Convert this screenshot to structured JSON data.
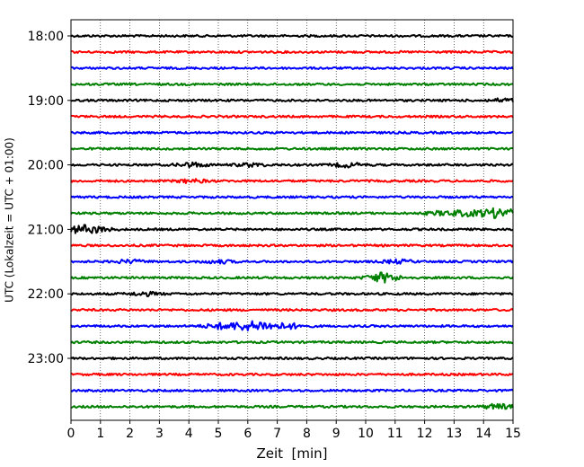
{
  "chart_data": {
    "type": "line",
    "title": "",
    "xlabel": "Zeit  [min]",
    "ylabel": "UTC (Lokalzeit = UTC + 01:00)",
    "xlim": [
      0,
      15
    ],
    "x_ticks": [
      "0",
      "1",
      "2",
      "3",
      "4",
      "5",
      "6",
      "7",
      "8",
      "9",
      "10",
      "11",
      "12",
      "13",
      "14",
      "15"
    ],
    "y_tick_labels": [
      "18:00",
      "19:00",
      "20:00",
      "21:00",
      "22:00",
      "23:00"
    ],
    "grid": "vertical-dotted",
    "legend": "none",
    "trace_colors": [
      "#000000",
      "#ff0000",
      "#0000ff",
      "#008000"
    ],
    "traces": [
      {
        "hour": "18:00",
        "segment": 0,
        "color": "#000000",
        "events": []
      },
      {
        "hour": "18:00",
        "segment": 1,
        "color": "#ff0000",
        "events": []
      },
      {
        "hour": "18:00",
        "segment": 2,
        "color": "#0000ff",
        "events": []
      },
      {
        "hour": "18:00",
        "segment": 3,
        "color": "#008000",
        "events": []
      },
      {
        "hour": "19:00",
        "segment": 0,
        "color": "#000000",
        "events": [
          {
            "t": 14.7,
            "amp": 1.6
          }
        ]
      },
      {
        "hour": "19:00",
        "segment": 1,
        "color": "#ff0000",
        "events": []
      },
      {
        "hour": "19:00",
        "segment": 2,
        "color": "#0000ff",
        "events": []
      },
      {
        "hour": "19:00",
        "segment": 3,
        "color": "#008000",
        "events": []
      },
      {
        "hour": "20:00",
        "segment": 0,
        "color": "#000000",
        "events": [
          {
            "t": 4.1,
            "amp": 2.2
          },
          {
            "t": 6.1,
            "amp": 1.6
          },
          {
            "t": 9.4,
            "amp": 2.0
          }
        ]
      },
      {
        "hour": "20:00",
        "segment": 1,
        "color": "#ff0000",
        "events": [
          {
            "t": 4.1,
            "amp": 1.6
          }
        ]
      },
      {
        "hour": "20:00",
        "segment": 2,
        "color": "#0000ff",
        "events": []
      },
      {
        "hour": "20:00",
        "segment": 3,
        "color": "#008000",
        "events": [
          {
            "t": 12.5,
            "amp": 1.6
          },
          {
            "t": 13.3,
            "amp": 2.5
          },
          {
            "t": 14.2,
            "amp": 3.2
          },
          {
            "t": 14.8,
            "amp": 3.6
          }
        ]
      },
      {
        "hour": "21:00",
        "segment": 0,
        "color": "#000000",
        "events": [
          {
            "t": 0.3,
            "amp": 3.4
          },
          {
            "t": 0.9,
            "amp": 2.2
          }
        ]
      },
      {
        "hour": "21:00",
        "segment": 1,
        "color": "#ff0000",
        "events": []
      },
      {
        "hour": "21:00",
        "segment": 2,
        "color": "#0000ff",
        "events": [
          {
            "t": 2.0,
            "amp": 1.6
          },
          {
            "t": 5.0,
            "amp": 1.5
          },
          {
            "t": 11.1,
            "amp": 1.7
          }
        ]
      },
      {
        "hour": "21:00",
        "segment": 3,
        "color": "#008000",
        "events": [
          {
            "t": 10.6,
            "amp": 5.0
          }
        ]
      },
      {
        "hour": "22:00",
        "segment": 0,
        "color": "#000000",
        "events": [
          {
            "t": 2.5,
            "amp": 1.7
          }
        ]
      },
      {
        "hour": "22:00",
        "segment": 1,
        "color": "#ff0000",
        "events": []
      },
      {
        "hour": "22:00",
        "segment": 2,
        "color": "#0000ff",
        "events": [
          {
            "t": 5.0,
            "amp": 2.4
          },
          {
            "t": 5.8,
            "amp": 3.4
          },
          {
            "t": 6.5,
            "amp": 4.0
          },
          {
            "t": 7.4,
            "amp": 2.4
          }
        ]
      },
      {
        "hour": "22:00",
        "segment": 3,
        "color": "#008000",
        "events": []
      },
      {
        "hour": "23:00",
        "segment": 0,
        "color": "#000000",
        "events": []
      },
      {
        "hour": "23:00",
        "segment": 1,
        "color": "#ff0000",
        "events": []
      },
      {
        "hour": "23:00",
        "segment": 2,
        "color": "#0000ff",
        "events": []
      },
      {
        "hour": "23:00",
        "segment": 3,
        "color": "#008000",
        "events": [
          {
            "t": 14.5,
            "amp": 2.4
          }
        ]
      }
    ]
  }
}
